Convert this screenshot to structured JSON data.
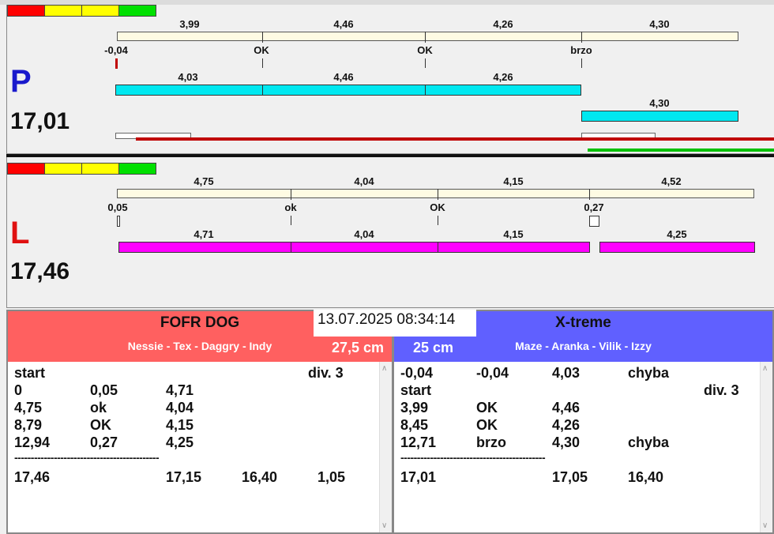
{
  "colors": {
    "red": "#ff0000",
    "yellow": "#ffff00",
    "green": "#00e000",
    "cyan": "#00e8f0",
    "magenta": "#ff00ff",
    "team_left": "#ff6060",
    "team_right": "#6060ff"
  },
  "lane_p": {
    "letter": "P",
    "total": "17,01",
    "top_times": [
      "3,99",
      "4,46",
      "4,26",
      "4,30"
    ],
    "reaction_labels": [
      "-0,04",
      "OK",
      "OK",
      "brzo"
    ],
    "dog_times": [
      "4,03",
      "4,46",
      "4,26",
      "4,30"
    ]
  },
  "lane_l": {
    "letter": "L",
    "total": "17,46",
    "top_times": [
      "4,75",
      "4,04",
      "4,15",
      "4,52"
    ],
    "reaction_labels": [
      "0,05",
      "ok",
      "OK",
      "0,27"
    ],
    "dog_times": [
      "4,71",
      "4,04",
      "4,15",
      "4,25"
    ]
  },
  "datetime": "13.07.2025 08:34:14",
  "left_team": {
    "name": "FOFR DOG",
    "dogs": "Nessie - Tex - Daggry - Indy",
    "size": "27,5 cm",
    "rows": [
      [
        "start",
        "",
        "",
        "",
        "div.  3"
      ],
      [
        "0",
        "0,05",
        "4,71",
        "",
        ""
      ],
      [
        "4,75",
        "ok",
        "4,04",
        "",
        ""
      ],
      [
        "8,79",
        "OK",
        "4,15",
        "",
        ""
      ],
      [
        "12,94",
        "0,27",
        "4,25",
        "",
        ""
      ]
    ],
    "separator": "--------------------------------------------",
    "total_row": [
      "17,46",
      "",
      "17,15",
      "16,40",
      "1,05"
    ]
  },
  "right_team": {
    "name": "X-treme",
    "dogs": "Maze - Aranka - Vilik - Izzy",
    "size": "25 cm",
    "rows": [
      [
        "-0,04",
        "-0,04",
        "4,03",
        "chyba",
        ""
      ],
      [
        "start",
        "",
        "",
        "",
        "div.  3"
      ],
      [
        "3,99",
        "OK",
        "4,46",
        "",
        ""
      ],
      [
        "8,45",
        "OK",
        "4,26",
        "",
        ""
      ],
      [
        "12,71",
        "brzo",
        "4,30",
        "chyba",
        ""
      ]
    ],
    "separator": "--------------------------------------------",
    "total_row": [
      "17,01",
      "",
      "17,05",
      "16,40",
      ""
    ]
  }
}
